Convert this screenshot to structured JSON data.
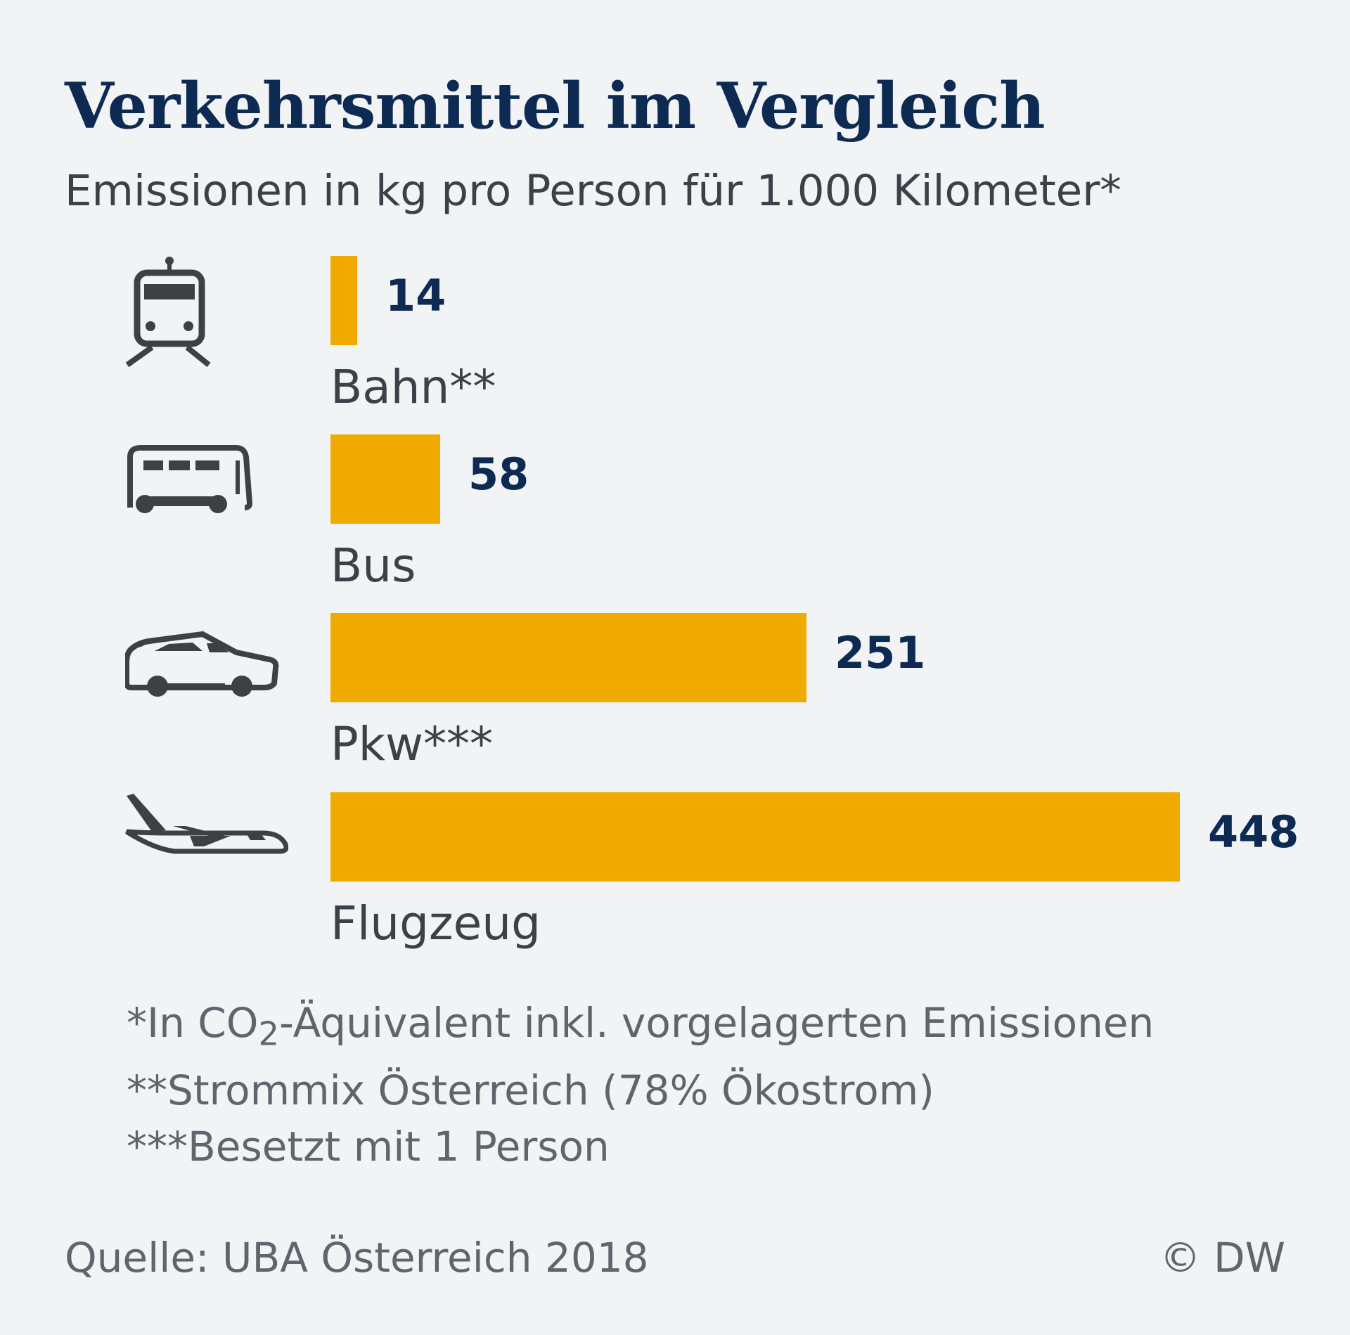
{
  "title": "Verkehrsmittel im Vergleich",
  "subtitle": "Emissionen in kg pro Person für 1.000 Kilometer*",
  "colors": {
    "bar": "#f1aa00",
    "title": "#0c2a52",
    "value": "#0c2a52",
    "text": "#3b4148",
    "note": "#5f656c",
    "icon": "#3e4143",
    "background": "#f1f3f5"
  },
  "chart_data": {
    "type": "bar",
    "orientation": "horizontal",
    "categories": [
      "Bahn**",
      "Bus",
      "Pkw***",
      "Flugzeug"
    ],
    "values": [
      14,
      58,
      251,
      448
    ],
    "icons": [
      "train-icon",
      "bus-icon",
      "car-icon",
      "airplane-icon"
    ],
    "value_labels": [
      "14",
      "58",
      "251",
      "448"
    ],
    "xlim": [
      0,
      448
    ],
    "grid": false,
    "legend": "none"
  },
  "footnotes": {
    "note1_prefix": "*In CO",
    "note1_sub": "2",
    "note1_suffix": "-Äquivalent inkl. vorgelagerten Emissionen",
    "note2": "**Strommix Österreich (78% Ökostrom)",
    "note3": "***Besetzt mit 1 Person"
  },
  "source": "Quelle: UBA Österreich 2018",
  "copyright": "© DW"
}
